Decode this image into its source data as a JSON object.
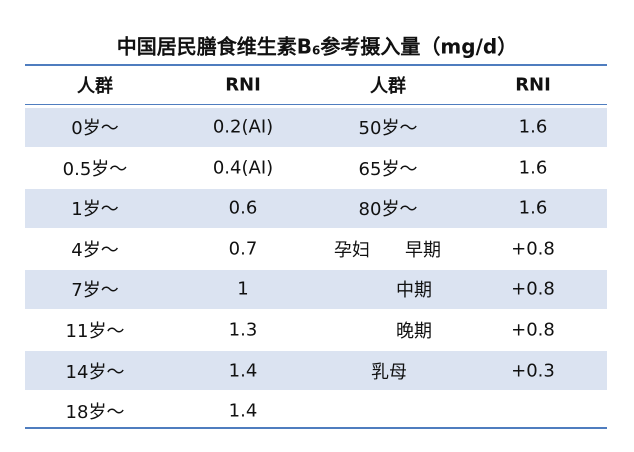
{
  "title": {
    "main": "中国居民膳食维生素B",
    "sub": "6",
    "rest": "参考摄入量（mg/d）"
  },
  "table": {
    "header": [
      "人群",
      "RNI",
      "人群",
      "RNI"
    ],
    "group_label": "孕妇",
    "rows": [
      [
        "0岁～",
        "0.2(AI)",
        "50岁～",
        "1.6"
      ],
      [
        "0.5岁～",
        "0.4(AI)",
        "65岁～",
        "1.6"
      ],
      [
        "1岁～",
        "0.6",
        "80岁～",
        "1.6"
      ],
      [
        "4岁～",
        "0.7",
        "早期",
        "+0.8"
      ],
      [
        "7岁～",
        "1",
        "中期",
        "+0.8"
      ],
      [
        "11岁～",
        "1.3",
        "晚期",
        "+0.8"
      ],
      [
        "14岁～",
        "1.4",
        "乳母",
        "+0.3"
      ],
      [
        "18岁～",
        "1.4"
      ]
    ]
  }
}
